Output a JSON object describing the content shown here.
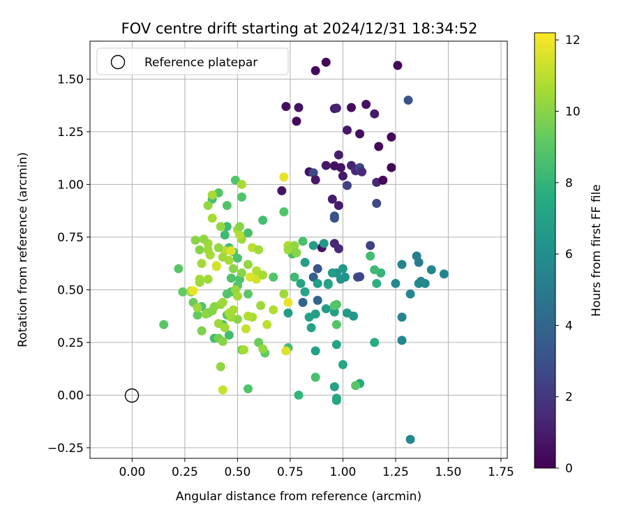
{
  "chart_data": {
    "type": "scatter",
    "title": "FOV centre drift starting at 2024/12/31 18:34:52",
    "xlabel": "Angular distance from reference (arcmin)",
    "ylabel": "Rotation from reference (arcmin)",
    "xlim": [
      -0.2,
      1.78
    ],
    "ylim": [
      -0.3,
      1.68
    ],
    "xticks": [
      0.0,
      0.25,
      0.5,
      0.75,
      1.0,
      1.25,
      1.5,
      1.75
    ],
    "xtick_labels": [
      "0.00",
      "0.25",
      "0.50",
      "0.75",
      "1.00",
      "1.25",
      "1.50",
      "1.75"
    ],
    "yticks": [
      -0.25,
      0.0,
      0.25,
      0.5,
      0.75,
      1.0,
      1.25,
      1.5
    ],
    "ytick_labels": [
      "−0.25",
      "0.00",
      "0.25",
      "0.50",
      "0.75",
      "1.00",
      "1.25",
      "1.50"
    ],
    "grid": true,
    "legend": {
      "position": "upper-left",
      "entries": [
        "Reference platepar"
      ]
    },
    "reference_point": {
      "x": 0.0,
      "y": 0.0,
      "marker": "hollow-circle"
    },
    "colorbar": {
      "label": "Hours from first FF file",
      "colormap": "viridis",
      "range": [
        0,
        12.2
      ],
      "ticks": [
        0,
        2,
        4,
        6,
        8,
        10,
        12
      ],
      "tick_labels": [
        "0",
        "2",
        "4",
        "6",
        "8",
        "10",
        "12"
      ]
    },
    "points": [
      [
        0.92,
        1.58,
        0.2
      ],
      [
        0.87,
        1.54,
        0.3
      ],
      [
        1.26,
        1.565,
        0.3
      ],
      [
        1.31,
        1.4,
        3.0
      ],
      [
        0.73,
        1.37,
        0.5
      ],
      [
        0.79,
        1.365,
        0.6
      ],
      [
        0.78,
        1.3,
        0.3
      ],
      [
        0.96,
        1.36,
        1.0
      ],
      [
        0.97,
        1.362,
        1.2
      ],
      [
        1.04,
        1.365,
        0.4
      ],
      [
        1.11,
        1.38,
        0.6
      ],
      [
        1.15,
        1.335,
        0.9
      ],
      [
        1.02,
        1.258,
        0.8
      ],
      [
        1.08,
        1.24,
        0.5
      ],
      [
        1.23,
        1.225,
        0.2
      ],
      [
        1.17,
        1.18,
        0.2
      ],
      [
        0.98,
        1.14,
        1.0
      ],
      [
        0.92,
        1.09,
        0.8
      ],
      [
        0.96,
        1.088,
        0.6
      ],
      [
        0.99,
        1.08,
        0.7
      ],
      [
        1.04,
        1.09,
        1.2
      ],
      [
        1.06,
        1.065,
        1.5
      ],
      [
        1.08,
        1.08,
        2.6
      ],
      [
        1.09,
        1.06,
        1.5
      ],
      [
        1.23,
        1.08,
        0.1
      ],
      [
        0.84,
        1.06,
        0.6
      ],
      [
        0.86,
        1.055,
        2.8
      ],
      [
        0.87,
        1.022,
        0.8
      ],
      [
        1.0,
        1.04,
        0.9
      ],
      [
        1.16,
        1.01,
        1.4
      ],
      [
        1.19,
        1.02,
        0.2
      ],
      [
        1.02,
        0.995,
        2.4
      ],
      [
        0.71,
        0.97,
        0.7
      ],
      [
        0.95,
        0.93,
        1.0
      ],
      [
        0.98,
        0.9,
        1.0
      ],
      [
        1.16,
        0.91,
        2.6
      ],
      [
        0.96,
        0.85,
        3.3
      ],
      [
        0.96,
        0.84,
        3.0
      ],
      [
        0.96,
        0.72,
        1.3
      ],
      [
        0.98,
        0.695,
        1.5
      ],
      [
        0.9,
        0.7,
        0.6
      ],
      [
        1.13,
        0.71,
        2.4
      ],
      [
        1.07,
        0.56,
        3.0
      ],
      [
        1.08,
        0.562,
        2.6
      ],
      [
        0.88,
        0.6,
        3.2
      ],
      [
        0.86,
        0.56,
        3.6
      ],
      [
        0.81,
        0.44,
        4.0
      ],
      [
        0.88,
        0.45,
        4.0
      ],
      [
        1.35,
        0.66,
        5.2
      ],
      [
        1.36,
        0.63,
        5.1
      ],
      [
        1.28,
        0.62,
        5.5
      ],
      [
        1.25,
        0.53,
        5.7
      ],
      [
        1.32,
        0.48,
        5.6
      ],
      [
        1.36,
        0.53,
        5.8
      ],
      [
        1.37,
        0.54,
        5.6
      ],
      [
        1.39,
        0.53,
        5.7
      ],
      [
        1.42,
        0.595,
        5.6
      ],
      [
        1.48,
        0.575,
        5.5
      ],
      [
        1.28,
        0.37,
        5.5
      ],
      [
        1.28,
        0.26,
        5.6
      ],
      [
        1.32,
        -0.21,
        5.7
      ],
      [
        0.91,
        0.72,
        6.5
      ],
      [
        0.86,
        0.71,
        6.8
      ],
      [
        0.97,
        0.58,
        6.0
      ],
      [
        0.99,
        0.55,
        6.3
      ],
      [
        1.0,
        0.6,
        6.5
      ],
      [
        1.01,
        0.56,
        6.2
      ],
      [
        0.93,
        0.53,
        6.5
      ],
      [
        0.88,
        0.53,
        6.8
      ],
      [
        0.95,
        0.58,
        6.7
      ],
      [
        0.82,
        0.63,
        6.8
      ],
      [
        0.8,
        0.53,
        7.0
      ],
      [
        0.82,
        0.49,
        7.2
      ],
      [
        0.84,
        0.37,
        7.0
      ],
      [
        0.85,
        0.32,
        7.0
      ],
      [
        0.87,
        0.385,
        6.8
      ],
      [
        0.92,
        0.41,
        6.7
      ],
      [
        0.96,
        0.395,
        6.8
      ],
      [
        1.02,
        0.39,
        6.6
      ],
      [
        1.05,
        0.375,
        6.4
      ],
      [
        0.93,
        0.525,
        7.2
      ],
      [
        0.74,
        0.39,
        6.8
      ],
      [
        0.87,
        0.21,
        6.9
      ],
      [
        0.97,
        0.24,
        7.0
      ],
      [
        1.0,
        0.145,
        7.2
      ],
      [
        0.96,
        0.04,
        7.0
      ],
      [
        0.97,
        -0.025,
        7.1
      ],
      [
        0.97,
        -0.015,
        7.3
      ],
      [
        1.08,
        0.055,
        7.4
      ],
      [
        1.15,
        0.25,
        7.5
      ],
      [
        0.79,
        0.0,
        8.0
      ],
      [
        0.74,
        0.225,
        8.4
      ],
      [
        1.13,
        0.66,
        8.4
      ],
      [
        1.16,
        0.53,
        7.8
      ],
      [
        1.18,
        0.58,
        8.0
      ],
      [
        1.15,
        0.595,
        8.3
      ],
      [
        0.87,
        0.085,
        8.6
      ],
      [
        1.06,
        0.045,
        9.0
      ],
      [
        0.97,
        0.43,
        8.7
      ],
      [
        0.96,
        0.425,
        8.9
      ],
      [
        0.97,
        0.335,
        8.9
      ],
      [
        0.81,
        0.73,
        8.6
      ],
      [
        0.76,
        0.67,
        8.5
      ],
      [
        0.77,
        0.56,
        8.3
      ],
      [
        0.72,
        0.87,
        8.8
      ],
      [
        0.67,
        0.56,
        8.8
      ],
      [
        0.62,
        0.83,
        8.5
      ],
      [
        0.55,
        0.77,
        8.6
      ],
      [
        0.52,
        0.94,
        8.8
      ],
      [
        0.49,
        1.02,
        8.8
      ],
      [
        0.45,
        0.8,
        8.3
      ],
      [
        0.44,
        0.76,
        8.3
      ],
      [
        0.38,
        0.93,
        8.5
      ],
      [
        0.41,
        0.96,
        8.9
      ],
      [
        0.45,
        0.9,
        8.9
      ],
      [
        0.46,
        0.7,
        8.6
      ],
      [
        0.48,
        0.68,
        8.6
      ],
      [
        0.5,
        0.65,
        8.7
      ],
      [
        0.47,
        0.555,
        8.7
      ],
      [
        0.51,
        0.55,
        8.7
      ],
      [
        0.5,
        0.52,
        8.9
      ],
      [
        0.45,
        0.48,
        8.8
      ],
      [
        0.47,
        0.49,
        8.8
      ],
      [
        0.55,
        0.48,
        9.0
      ],
      [
        0.45,
        0.38,
        9.0
      ],
      [
        0.43,
        0.335,
        8.6
      ],
      [
        0.46,
        0.285,
        8.4
      ],
      [
        0.39,
        0.27,
        8.5
      ],
      [
        0.36,
        0.39,
        8.7
      ],
      [
        0.33,
        0.42,
        8.8
      ],
      [
        0.31,
        0.38,
        9.2
      ],
      [
        0.29,
        0.44,
        9.4
      ],
      [
        0.28,
        0.49,
        9.4
      ],
      [
        0.24,
        0.49,
        9.2
      ],
      [
        0.22,
        0.6,
        9.0
      ],
      [
        0.15,
        0.335,
        9.0
      ],
      [
        0.33,
        0.305,
        9.8
      ],
      [
        0.41,
        0.27,
        9.6
      ],
      [
        0.43,
        0.255,
        10.0
      ],
      [
        0.42,
        0.135,
        10.2
      ],
      [
        0.43,
        0.025,
        11.2
      ],
      [
        0.52,
        0.215,
        9.6
      ],
      [
        0.55,
        0.03,
        8.8
      ],
      [
        0.6,
        0.25,
        9.4
      ],
      [
        0.63,
        0.2,
        9.2
      ],
      [
        0.53,
        0.215,
        10.6
      ],
      [
        0.54,
        0.315,
        11.2
      ],
      [
        0.5,
        0.36,
        10.0
      ],
      [
        0.47,
        0.37,
        10.4
      ],
      [
        0.39,
        0.42,
        10.0
      ],
      [
        0.42,
        0.43,
        10.2
      ],
      [
        0.43,
        0.44,
        10.4
      ],
      [
        0.48,
        0.405,
        10.6
      ],
      [
        0.48,
        0.6,
        10.0
      ],
      [
        0.52,
        0.58,
        10.0
      ],
      [
        0.55,
        0.62,
        10.2
      ],
      [
        0.56,
        0.56,
        11.6
      ],
      [
        0.59,
        0.55,
        11.4
      ],
      [
        0.59,
        0.59,
        10.8
      ],
      [
        0.62,
        0.57,
        10.6
      ],
      [
        0.57,
        0.7,
        11.0
      ],
      [
        0.6,
        0.69,
        10.5
      ],
      [
        0.57,
        0.37,
        10.6
      ],
      [
        0.61,
        0.425,
        10.4
      ],
      [
        0.64,
        0.335,
        11.0
      ],
      [
        0.67,
        0.405,
        10.8
      ],
      [
        0.72,
        0.48,
        10.5
      ],
      [
        0.74,
        0.44,
        11.8
      ],
      [
        0.73,
        0.21,
        11.6
      ],
      [
        0.72,
        1.035,
        11.8
      ],
      [
        0.74,
        0.71,
        10.8
      ],
      [
        0.74,
        0.69,
        10.4
      ],
      [
        0.77,
        0.71,
        10.2
      ],
      [
        0.78,
        0.675,
        10.0
      ],
      [
        0.5,
        0.785,
        10.6
      ],
      [
        0.52,
        0.74,
        10.4
      ],
      [
        0.51,
        0.76,
        10.8
      ],
      [
        0.46,
        0.64,
        10.6
      ],
      [
        0.44,
        0.685,
        11.0
      ],
      [
        0.47,
        0.685,
        11.6
      ],
      [
        0.4,
        0.615,
        11.6
      ],
      [
        0.4,
        0.61,
        11.4
      ],
      [
        0.36,
        0.72,
        10.5
      ],
      [
        0.34,
        0.74,
        10.2
      ],
      [
        0.3,
        0.735,
        10.0
      ],
      [
        0.32,
        0.69,
        10.0
      ],
      [
        0.36,
        0.69,
        10.4
      ],
      [
        0.37,
        0.665,
        10.6
      ],
      [
        0.43,
        0.655,
        10.4
      ],
      [
        0.41,
        0.7,
        10.2
      ],
      [
        0.42,
        0.8,
        10.2
      ],
      [
        0.51,
        0.8,
        10.0
      ],
      [
        0.52,
        1.0,
        10.6
      ],
      [
        0.38,
        0.95,
        10.6
      ],
      [
        0.36,
        0.9,
        10.2
      ],
      [
        0.38,
        0.84,
        10.6
      ],
      [
        0.36,
        0.55,
        10.5
      ],
      [
        0.32,
        0.55,
        10.6
      ],
      [
        0.32,
        0.535,
        10.4
      ],
      [
        0.33,
        0.625,
        10.5
      ],
      [
        0.28,
        0.495,
        11.0
      ],
      [
        0.29,
        0.495,
        11.8
      ],
      [
        0.31,
        0.415,
        10.4
      ],
      [
        0.35,
        0.385,
        10.2
      ],
      [
        0.38,
        0.4,
        10.0
      ],
      [
        0.41,
        0.34,
        10.4
      ],
      [
        0.44,
        0.32,
        10.5
      ],
      [
        0.46,
        0.39,
        10.6
      ],
      [
        0.49,
        0.5,
        10.3
      ],
      [
        0.5,
        0.47,
        10.5
      ],
      [
        0.62,
        0.22,
        10.2
      ],
      [
        0.55,
        0.375,
        10.8
      ]
    ]
  }
}
